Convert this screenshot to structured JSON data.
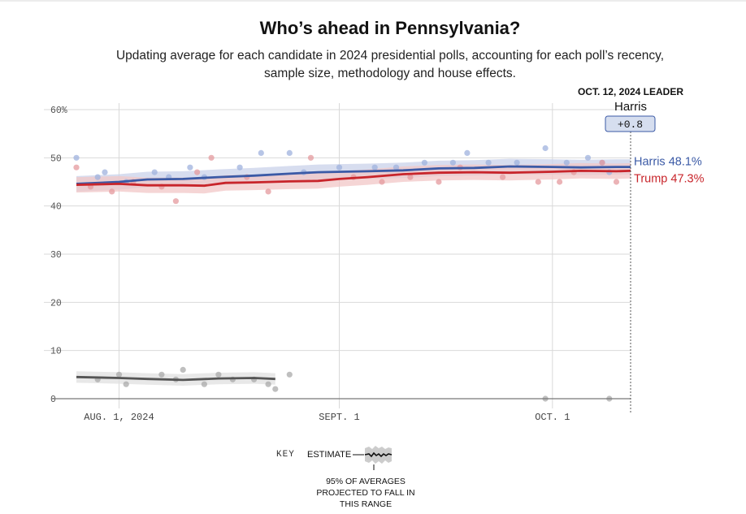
{
  "title": "Who’s ahead in Pennsylvania?",
  "subtitle": "Updating average for each candidate in 2024 presidential polls, accounting for each poll’s recency, sample size, methodology and house effects.",
  "leader": {
    "heading": "OCT. 12, 2024 LEADER",
    "name": "Harris",
    "margin": "+0.8"
  },
  "colors": {
    "harris": "#3b5aa6",
    "trump": "#c8252b",
    "other": "#555555",
    "harris_band": "#c9d2ea",
    "trump_band": "#f2c7c7",
    "other_band": "#e0e0e0",
    "grid": "#d9d9d9",
    "axis": "#777777"
  },
  "key": {
    "label": "KEY",
    "estimate": "ESTIMATE",
    "range": "95% OF AVERAGES PROJECTED TO FALL IN THIS RANGE"
  },
  "chart_data": {
    "type": "line",
    "title": "Who’s ahead in Pennsylvania?",
    "x_range": [
      "2024-07-26",
      "2024-10-12"
    ],
    "x_ticks": [
      {
        "date": "2024-08-01",
        "label": "AUG. 1, 2024"
      },
      {
        "date": "2024-09-01",
        "label": "SEPT. 1"
      },
      {
        "date": "2024-10-01",
        "label": "OCT. 1"
      }
    ],
    "ylim": [
      0,
      60
    ],
    "y_ticks": [
      {
        "value": 0,
        "label": "0"
      },
      {
        "value": 10,
        "label": "10"
      },
      {
        "value": 20,
        "label": "20"
      },
      {
        "value": 30,
        "label": "30"
      },
      {
        "value": 40,
        "label": "40"
      },
      {
        "value": 50,
        "label": "50"
      },
      {
        "value": 60,
        "label": "60%"
      }
    ],
    "grid": true,
    "series": [
      {
        "name": "Harris",
        "end_label": "Harris 48.1%",
        "color": "#3b5aa6",
        "band": 1.6,
        "points": [
          [
            "2024-07-26",
            44.6
          ],
          [
            "2024-08-01",
            45.0
          ],
          [
            "2024-08-05",
            45.5
          ],
          [
            "2024-08-10",
            45.6
          ],
          [
            "2024-08-15",
            46.0
          ],
          [
            "2024-08-20",
            46.3
          ],
          [
            "2024-08-25",
            46.7
          ],
          [
            "2024-08-29",
            47.0
          ],
          [
            "2024-09-05",
            47.2
          ],
          [
            "2024-09-10",
            47.4
          ],
          [
            "2024-09-15",
            47.8
          ],
          [
            "2024-09-20",
            47.9
          ],
          [
            "2024-09-25",
            48.2
          ],
          [
            "2024-10-01",
            48.1
          ],
          [
            "2024-10-05",
            48.0
          ],
          [
            "2024-10-10",
            48.1
          ],
          [
            "2024-10-12",
            48.1
          ]
        ],
        "polls": [
          [
            "2024-07-26",
            50.0
          ],
          [
            "2024-07-29",
            46.0
          ],
          [
            "2024-07-30",
            47.0
          ],
          [
            "2024-08-02",
            45.0
          ],
          [
            "2024-08-06",
            47.0
          ],
          [
            "2024-08-08",
            46.0
          ],
          [
            "2024-08-11",
            48.0
          ],
          [
            "2024-08-13",
            46.0
          ],
          [
            "2024-08-18",
            48.0
          ],
          [
            "2024-08-21",
            51.0
          ],
          [
            "2024-08-25",
            51.0
          ],
          [
            "2024-08-27",
            47.0
          ],
          [
            "2024-09-01",
            48.0
          ],
          [
            "2024-09-06",
            48.0
          ],
          [
            "2024-09-09",
            48.0
          ],
          [
            "2024-09-13",
            49.0
          ],
          [
            "2024-09-17",
            49.0
          ],
          [
            "2024-09-19",
            51.0
          ],
          [
            "2024-09-22",
            49.0
          ],
          [
            "2024-09-26",
            49.0
          ],
          [
            "2024-09-30",
            52.0
          ],
          [
            "2024-10-03",
            49.0
          ],
          [
            "2024-10-06",
            50.0
          ],
          [
            "2024-10-08",
            49.0
          ],
          [
            "2024-10-09",
            47.0
          ]
        ]
      },
      {
        "name": "Trump",
        "end_label": "Trump 47.3%",
        "color": "#c8252b",
        "band": 1.6,
        "points": [
          [
            "2024-07-26",
            44.4
          ],
          [
            "2024-08-01",
            44.6
          ],
          [
            "2024-08-05",
            44.3
          ],
          [
            "2024-08-10",
            44.3
          ],
          [
            "2024-08-13",
            44.2
          ],
          [
            "2024-08-16",
            44.8
          ],
          [
            "2024-08-20",
            44.9
          ],
          [
            "2024-08-25",
            45.1
          ],
          [
            "2024-08-29",
            45.2
          ],
          [
            "2024-09-01",
            45.6
          ],
          [
            "2024-09-05",
            46.0
          ],
          [
            "2024-09-10",
            46.6
          ],
          [
            "2024-09-15",
            46.9
          ],
          [
            "2024-09-20",
            47.0
          ],
          [
            "2024-09-25",
            46.9
          ],
          [
            "2024-10-01",
            47.1
          ],
          [
            "2024-10-05",
            47.3
          ],
          [
            "2024-10-10",
            47.2
          ],
          [
            "2024-10-12",
            47.3
          ]
        ],
        "polls": [
          [
            "2024-07-26",
            48.0
          ],
          [
            "2024-07-28",
            44.0
          ],
          [
            "2024-07-31",
            43.0
          ],
          [
            "2024-08-03",
            45.0
          ],
          [
            "2024-08-07",
            44.0
          ],
          [
            "2024-08-09",
            41.0
          ],
          [
            "2024-08-12",
            47.0
          ],
          [
            "2024-08-14",
            50.0
          ],
          [
            "2024-08-19",
            46.0
          ],
          [
            "2024-08-22",
            43.0
          ],
          [
            "2024-08-28",
            50.0
          ],
          [
            "2024-09-03",
            46.0
          ],
          [
            "2024-09-07",
            45.0
          ],
          [
            "2024-09-11",
            46.0
          ],
          [
            "2024-09-15",
            45.0
          ],
          [
            "2024-09-18",
            48.0
          ],
          [
            "2024-09-24",
            46.0
          ],
          [
            "2024-09-29",
            45.0
          ],
          [
            "2024-10-02",
            45.0
          ],
          [
            "2024-10-04",
            47.0
          ],
          [
            "2024-10-08",
            49.0
          ],
          [
            "2024-10-10",
            45.0
          ]
        ]
      },
      {
        "name": "Other",
        "color": "#555555",
        "band": 1.2,
        "points": [
          [
            "2024-07-26",
            4.5
          ],
          [
            "2024-08-01",
            4.3
          ],
          [
            "2024-08-05",
            4.1
          ],
          [
            "2024-08-10",
            3.9
          ],
          [
            "2024-08-15",
            4.2
          ],
          [
            "2024-08-20",
            4.3
          ],
          [
            "2024-08-23",
            4.1
          ]
        ],
        "polls": [
          [
            "2024-07-29",
            4.0
          ],
          [
            "2024-08-01",
            5.0
          ],
          [
            "2024-08-02",
            3.0
          ],
          [
            "2024-08-07",
            5.0
          ],
          [
            "2024-08-09",
            4.0
          ],
          [
            "2024-08-10",
            6.0
          ],
          [
            "2024-08-13",
            3.0
          ],
          [
            "2024-08-15",
            5.0
          ],
          [
            "2024-08-17",
            4.0
          ],
          [
            "2024-08-20",
            4.0
          ],
          [
            "2024-08-22",
            3.0
          ],
          [
            "2024-08-23",
            2.0
          ],
          [
            "2024-08-25",
            5.0
          ],
          [
            "2024-09-30",
            0.0
          ],
          [
            "2024-10-09",
            0.0
          ]
        ]
      }
    ]
  }
}
